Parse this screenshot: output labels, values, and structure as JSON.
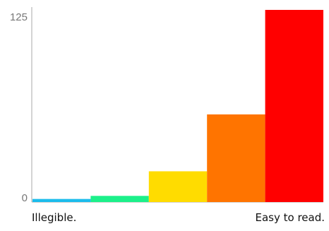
{
  "chart_data": {
    "type": "bar",
    "categories": [
      "",
      "",
      "",
      "",
      ""
    ],
    "values": [
      2,
      4,
      20,
      57,
      125
    ],
    "colors": [
      "#1cbcec",
      "#1cf08a",
      "#ffdc00",
      "#ff7400",
      "#ff0000"
    ],
    "ylim": [
      0,
      125
    ],
    "yticks": [
      "0",
      "125"
    ],
    "x_end_labels": {
      "left": "Illegible.",
      "right": "Easy to read."
    },
    "title": "",
    "xlabel": "",
    "ylabel": "",
    "grid": false,
    "axis_color": "#aaaaaa"
  }
}
